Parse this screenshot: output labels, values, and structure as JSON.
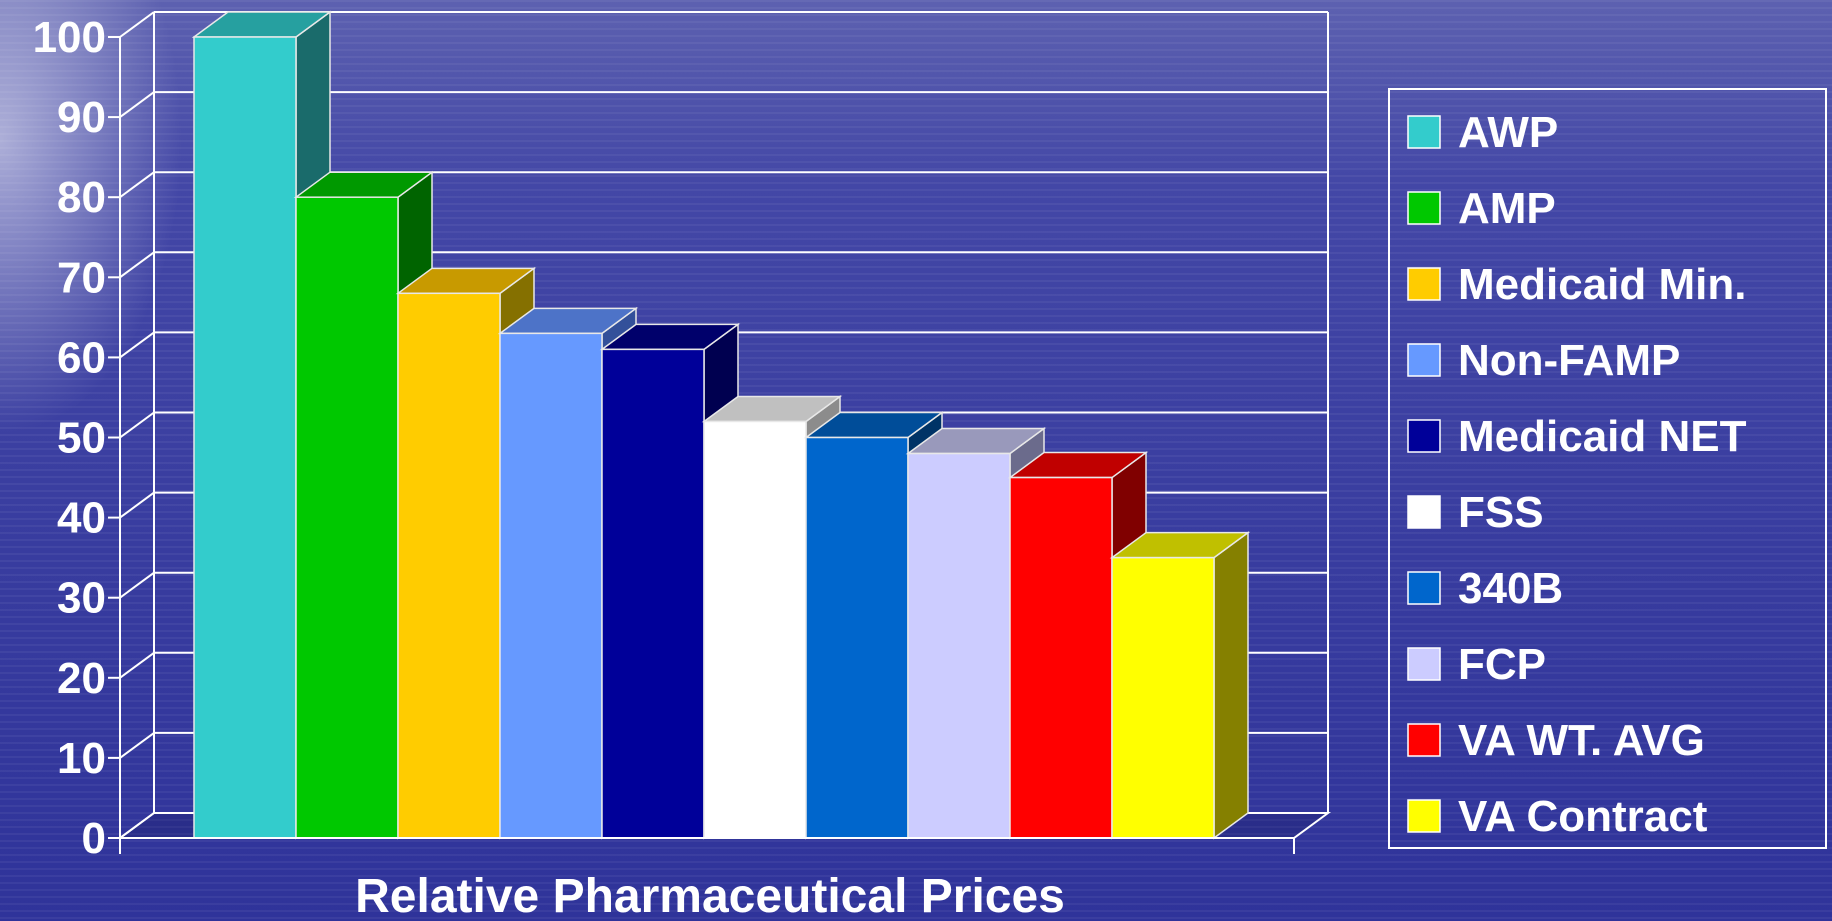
{
  "chart_data": {
    "type": "bar",
    "title": "",
    "xlabel": "Relative Pharmaceutical Prices",
    "ylabel": "",
    "ylim": [
      0,
      100
    ],
    "yticks": [
      "0",
      "10",
      "20",
      "30",
      "40",
      "50",
      "60",
      "70",
      "80",
      "90",
      "100"
    ],
    "grid": true,
    "three_d": true,
    "legend_position": "right",
    "series": [
      {
        "name": "AWP",
        "value": 100,
        "color": "#33cccc",
        "side_color": "#1a6b6b",
        "top_color": "#26a0a0"
      },
      {
        "name": "AMP",
        "value": 80,
        "color": "#00c800",
        "side_color": "#006400",
        "top_color": "#009900"
      },
      {
        "name": "Medicaid Min.",
        "value": 68,
        "color": "#ffcc00",
        "side_color": "#857000",
        "top_color": "#c89a00"
      },
      {
        "name": "Non-FAMP",
        "value": 63,
        "color": "#6699ff",
        "side_color": "#33509a",
        "top_color": "#4d73c8"
      },
      {
        "name": "Medicaid NET",
        "value": 61,
        "color": "#000099",
        "side_color": "#000050",
        "top_color": "#00006b"
      },
      {
        "name": "FSS",
        "value": 52,
        "color": "#ffffff",
        "side_color": "#8c8c8c",
        "top_color": "#c0c0c0"
      },
      {
        "name": "340B",
        "value": 50,
        "color": "#0066cc",
        "side_color": "#003366",
        "top_color": "#004d99"
      },
      {
        "name": "FCP",
        "value": 48,
        "color": "#ccccff",
        "side_color": "#6b6b8c",
        "top_color": "#9999bb"
      },
      {
        "name": "VA WT. AVG",
        "value": 45,
        "color": "#ff0000",
        "side_color": "#800000",
        "top_color": "#c00000"
      },
      {
        "name": "VA Contract",
        "value": 35,
        "color": "#ffff00",
        "side_color": "#858000",
        "top_color": "#c0c000"
      }
    ]
  }
}
